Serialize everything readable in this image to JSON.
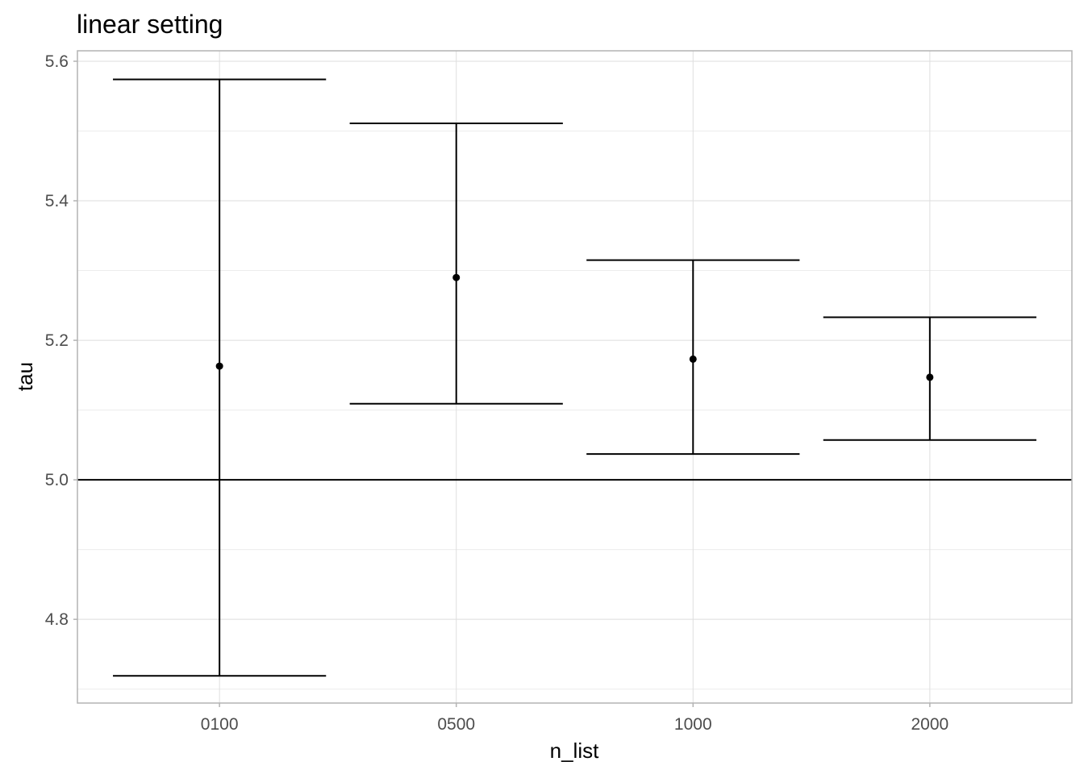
{
  "chart_data": {
    "type": "errorbar",
    "title": "linear setting",
    "xlabel": "n_list",
    "ylabel": "tau",
    "categories": [
      "0100",
      "0500",
      "1000",
      "2000"
    ],
    "estimates": [
      5.163,
      5.29,
      5.173,
      5.147
    ],
    "lower": [
      4.719,
      5.109,
      5.037,
      5.057
    ],
    "upper": [
      5.574,
      5.511,
      5.315,
      5.233
    ],
    "ylim": [
      4.68,
      5.615
    ],
    "yticks": [
      "4.8",
      "5.0",
      "5.2",
      "5.4",
      "5.6"
    ],
    "reference_line": 5.0,
    "grid": true,
    "colors": {
      "marks": "#000000",
      "major_grid": "#dedede",
      "minor_grid": "#ececec",
      "panel_border": "#b3b3b3",
      "tick_text": "#4d4d4d"
    }
  }
}
